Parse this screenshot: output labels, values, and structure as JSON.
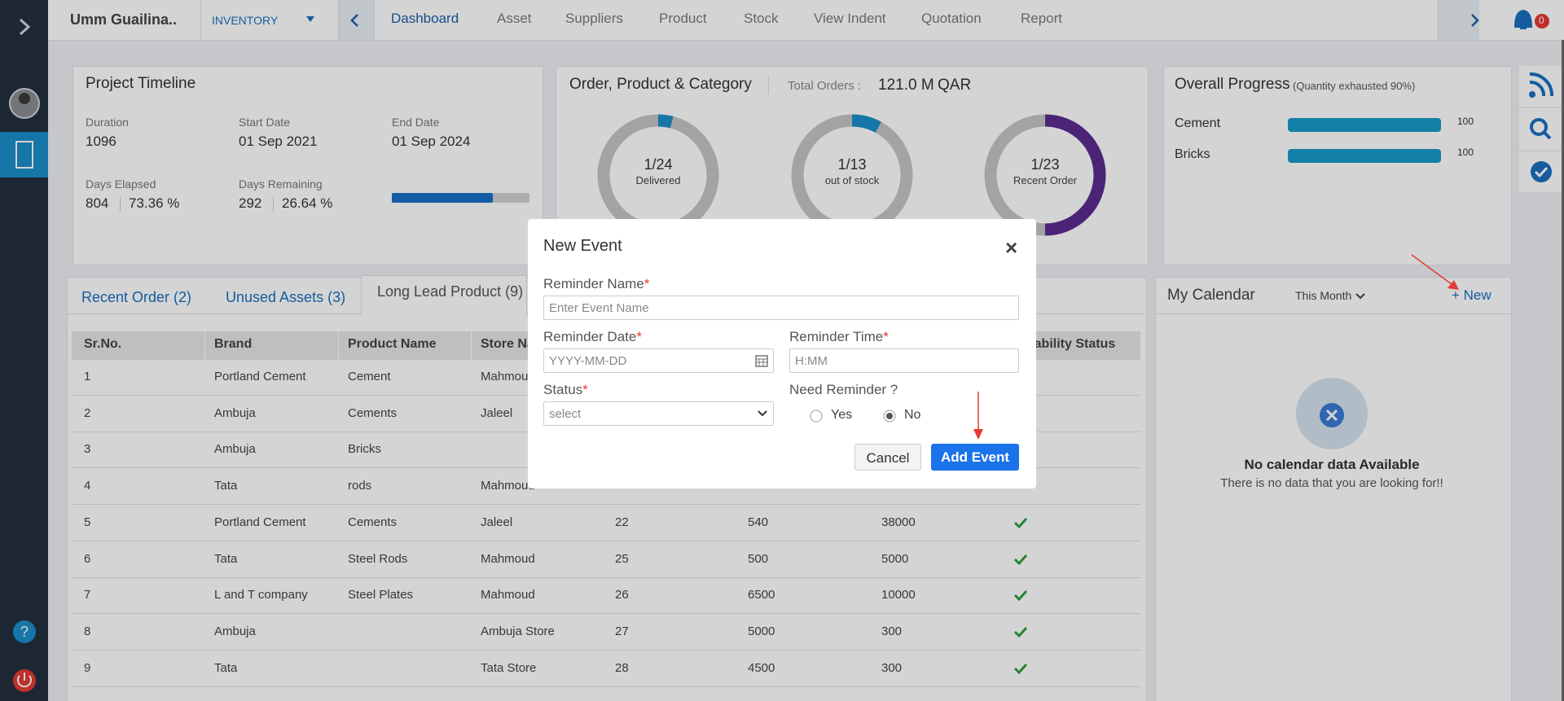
{
  "header": {
    "company": "Umm Guailina..",
    "module": "INVENTORY",
    "nav": [
      "Dashboard",
      "Asset",
      "Suppliers",
      "Product",
      "Stock",
      "View Indent",
      "Quotation",
      "Report"
    ],
    "active_nav": 0,
    "notifications": "0"
  },
  "project_timeline": {
    "title": "Project Timeline",
    "items": [
      {
        "label": "Duration",
        "value": "1096"
      },
      {
        "label": "Start Date",
        "value": "01 Sep 2021"
      },
      {
        "label": "End Date",
        "value": "01 Sep 2024"
      },
      {
        "label": "Days Elapsed",
        "value": "804",
        "percent": "73.36 %"
      },
      {
        "label": "Days Remaining",
        "value": "292",
        "percent": "26.64 %"
      }
    ],
    "progress": 73.36
  },
  "orders": {
    "title": "Order, Product & Category",
    "total_label": "Total Orders :",
    "total": "121.0 M",
    "currency": "QAR",
    "donuts": [
      {
        "label": "1/24",
        "caption": "Delivered",
        "fill": 4,
        "color": "#1a8fc9"
      },
      {
        "label": "1/13",
        "caption": "out of stock",
        "fill": 8,
        "color": "#1a8fc9"
      },
      {
        "label": "1/23",
        "caption": "Recent Order",
        "fill": 50,
        "color": "#5b2c91"
      }
    ]
  },
  "overall_progress": {
    "title": "Overall Progress",
    "note": "(Quantity exhausted 90%)",
    "items": [
      {
        "name": "Cement",
        "value": 100
      },
      {
        "name": "Bricks",
        "value": 100
      }
    ]
  },
  "tabs": {
    "items": [
      "Recent Order (2)",
      "Unused Assets (3)",
      "Long Lead Product (9)"
    ],
    "active": 2
  },
  "table": {
    "columns": [
      "Sr.No.",
      "Brand",
      "Product Name",
      "Store Name",
      "Availability Status"
    ],
    "rows": [
      [
        "1",
        "Portland Cement",
        "Cement",
        "Mahmoud"
      ],
      [
        "2",
        "Ambuja",
        "Cements",
        "Jaleel"
      ],
      [
        "3",
        "Ambuja",
        "Bricks"
      ],
      [
        "4",
        "Tata",
        "rods",
        "Mahmoud"
      ],
      [
        "5",
        "Portland Cement",
        "Cements",
        "Jaleel",
        "22",
        "540",
        "38000"
      ],
      [
        "6",
        "Tata",
        "Steel Rods",
        "Mahmoud",
        "25",
        "500",
        "5000"
      ],
      [
        "7",
        "L and T company",
        "Steel Plates",
        "Mahmoud",
        "26",
        "6500",
        "10000"
      ],
      [
        "8",
        "Ambuja",
        null,
        "Ambuja Store",
        "27",
        "5000",
        "300"
      ],
      [
        "9",
        "Tata",
        null,
        "Tata Store",
        "28",
        "4500",
        "300"
      ]
    ]
  },
  "calendar": {
    "title": "My Calendar",
    "filter": "This Month",
    "new": "+ New",
    "empty_title": "No calendar data Available",
    "empty_text": "There is no data that you are looking for!!"
  },
  "modal": {
    "title": "New Event",
    "close": "×",
    "required": "*",
    "reminder_name": {
      "label": "Reminder Name",
      "placeholder": "Enter Event Name"
    },
    "reminder_date": {
      "label": "Reminder Date",
      "placeholder": "YYYY-MM-DD"
    },
    "reminder_time": {
      "label": "Reminder Time",
      "placeholder": "H:MM"
    },
    "status": {
      "label": "Status",
      "placeholder": "select"
    },
    "need_reminder": {
      "label": "Need Reminder ?",
      "options": [
        "Yes",
        "No"
      ],
      "selected": 1
    },
    "cancel": "Cancel",
    "submit": "Add Event"
  }
}
